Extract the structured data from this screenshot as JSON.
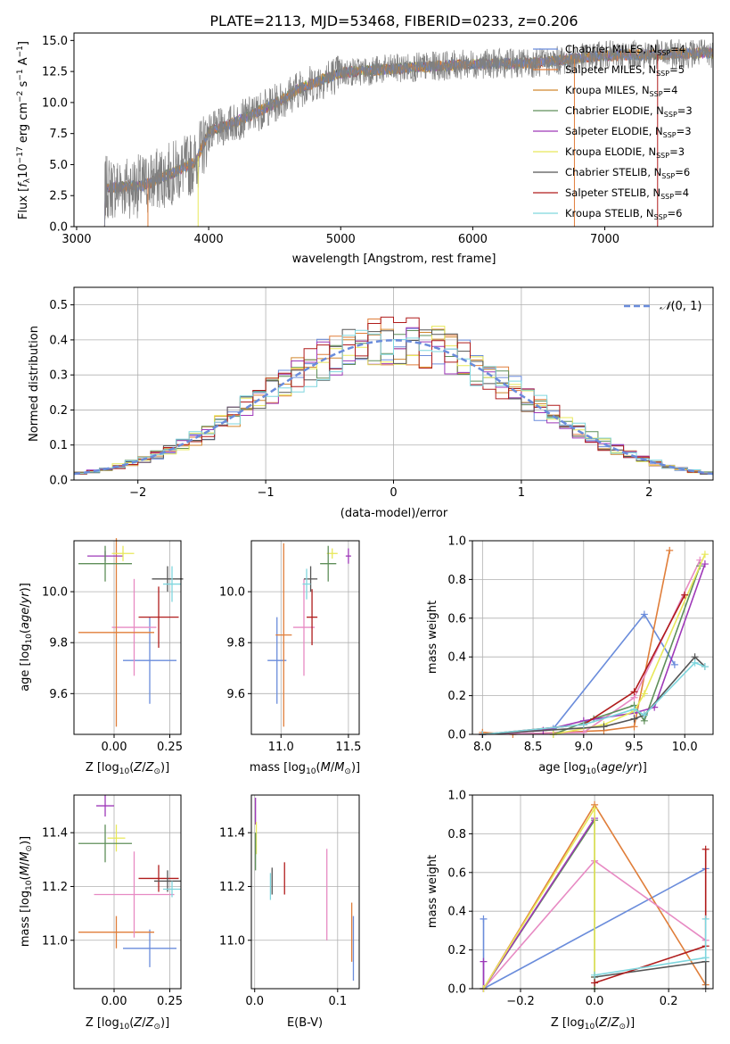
{
  "chart_data": [
    {
      "id": "spectrum",
      "type": "line",
      "title": "PLATE=2113, MJD=53468, FIBERID=0233, z=0.206",
      "xlabel": "wavelength [Angstrom, rest frame]",
      "ylabel": "Flux [f_λ 10^-17 erg cm^-2 s^-1 A^-1]",
      "xlim": [
        2980,
        7820
      ],
      "ylim": [
        0,
        15.6
      ],
      "xticks": [
        3000,
        4000,
        5000,
        6000,
        7000
      ],
      "yticks": [
        0.0,
        2.5,
        5.0,
        7.5,
        10.0,
        12.5,
        15.0
      ],
      "data_range": [
        3200,
        7820
      ],
      "continuum_anchors": [
        [
          3200,
          3.1
        ],
        [
          3500,
          3.3
        ],
        [
          3700,
          4.2
        ],
        [
          3900,
          5.2
        ],
        [
          4000,
          7.6
        ],
        [
          4200,
          8.4
        ],
        [
          4500,
          9.9
        ],
        [
          4700,
          11.2
        ],
        [
          5000,
          12.4
        ],
        [
          5500,
          12.8
        ],
        [
          6000,
          13.1
        ],
        [
          6500,
          13.2
        ],
        [
          7000,
          13.8
        ],
        [
          7500,
          13.9
        ],
        [
          7820,
          14.0
        ]
      ],
      "legend": [
        {
          "name": "Chabrier MILES, N_SSP=4",
          "color": "#6a8cdb"
        },
        {
          "name": "Salpeter MILES, N_SSP=5",
          "color": "#e07e3a"
        },
        {
          "name": "Kroupa MILES, N_SSP=4",
          "color": "#d1862e"
        },
        {
          "name": "Chabrier ELODIE, N_SSP=3",
          "color": "#5f8f5a"
        },
        {
          "name": "Salpeter ELODIE, N_SSP=3",
          "color": "#9e38b8"
        },
        {
          "name": "Kroupa ELODIE, N_SSP=3",
          "color": "#e8e85a"
        },
        {
          "name": "Chabrier STELIB, N_SSP=6",
          "color": "#555555"
        },
        {
          "name": "Salpeter STELIB, N_SSP=4",
          "color": "#b01c1c"
        },
        {
          "name": "Kroupa STELIB, N_SSP=6",
          "color": "#7fd6de"
        }
      ],
      "legend_labels": [
        {
          "name": "Chabrier MILES, N",
          "sub": "SSP",
          "tail": "=4"
        },
        {
          "name": "Salpeter MILES, N",
          "sub": "SSP",
          "tail": "=5"
        },
        {
          "name": "Kroupa MILES, N",
          "sub": "SSP",
          "tail": "=4"
        },
        {
          "name": "Chabrier ELODIE, N",
          "sub": "SSP",
          "tail": "=3"
        },
        {
          "name": "Salpeter ELODIE, N",
          "sub": "SSP",
          "tail": "=3"
        },
        {
          "name": "Kroupa ELODIE, N",
          "sub": "SSP",
          "tail": "=3"
        },
        {
          "name": "Chabrier STELIB, N",
          "sub": "SSP",
          "tail": "=6"
        },
        {
          "name": "Salpeter STELIB, N",
          "sub": "SSP",
          "tail": "=4"
        },
        {
          "name": "Kroupa STELIB, N",
          "sub": "SSP",
          "tail": "=6"
        }
      ],
      "legend_position": "right"
    },
    {
      "id": "residuals",
      "type": "line",
      "xlabel": "(data-model)/error",
      "ylabel": "Normed distribution",
      "xlim": [
        -2.5,
        2.5
      ],
      "ylim": [
        0,
        0.55
      ],
      "xticks": [
        -2,
        -1,
        0,
        1,
        2
      ],
      "xtick_labels": [
        "−2",
        "−1",
        "0",
        "1",
        "2"
      ],
      "yticks": [
        0.0,
        0.1,
        0.2,
        0.3,
        0.4,
        0.5
      ],
      "grid": true,
      "legend": [
        {
          "name": "N(0,1)",
          "color": "#6a8cdb",
          "style": "dashed"
        }
      ],
      "legend_position": "top-right"
    },
    {
      "id": "age_vs_Z",
      "type": "scatter",
      "xlabel": "Z [log10(Z/Z☉)]",
      "ylabel": "age [log10(age/yr)]",
      "xlim": [
        -0.18,
        0.3
      ],
      "ylim": [
        9.44,
        10.2
      ],
      "xticks": [
        0.0,
        0.25
      ],
      "yticks": [
        9.6,
        9.8,
        10.0
      ],
      "grid": true,
      "points": [
        {
          "x": 0.16,
          "y": 9.73,
          "xerr": 0.12,
          "yerr": 0.17,
          "color": "#6a8cdb"
        },
        {
          "x": 0.09,
          "y": 9.86,
          "xerr": 0.1,
          "yerr": 0.19,
          "color": "#e78ac3"
        },
        {
          "x": 0.01,
          "y": 9.84,
          "xerr": 0.17,
          "yerr": 0.37,
          "color": "#e07e3a"
        },
        {
          "x": 0.2,
          "y": 9.9,
          "xerr": 0.09,
          "yerr": 0.12,
          "color": "#b01c1c"
        },
        {
          "x": 0.24,
          "y": 10.05,
          "xerr": 0.07,
          "yerr": 0.05,
          "color": "#555555"
        },
        {
          "x": 0.26,
          "y": 10.03,
          "xerr": 0.04,
          "yerr": 0.07,
          "color": "#7fd6de"
        },
        {
          "x": -0.04,
          "y": 10.14,
          "xerr": 0.08,
          "yerr": 0.02,
          "color": "#9e38b8"
        },
        {
          "x": 0.04,
          "y": 10.15,
          "xerr": 0.05,
          "yerr": 0.03,
          "color": "#e8e85a"
        },
        {
          "x": -0.04,
          "y": 10.11,
          "xerr": 0.12,
          "yerr": 0.07,
          "color": "#5f8f5a"
        }
      ]
    },
    {
      "id": "age_vs_mass",
      "type": "scatter",
      "xlabel": "mass [log10(M/M☉)]",
      "xlim": [
        10.78,
        11.58
      ],
      "ylim": [
        9.44,
        10.2
      ],
      "xticks": [
        11.0,
        11.5
      ],
      "yticks": [
        9.6,
        9.8,
        10.0
      ],
      "grid": true,
      "points": [
        {
          "x": 10.97,
          "y": 9.73,
          "xerr": 0.07,
          "yerr": 0.17,
          "color": "#6a8cdb"
        },
        {
          "x": 11.02,
          "y": 9.83,
          "xerr": 0.06,
          "yerr": 0.36,
          "color": "#e07e3a"
        },
        {
          "x": 11.17,
          "y": 9.86,
          "xerr": 0.08,
          "yerr": 0.19,
          "color": "#e78ac3"
        },
        {
          "x": 11.23,
          "y": 9.9,
          "xerr": 0.04,
          "yerr": 0.11,
          "color": "#b01c1c"
        },
        {
          "x": 11.22,
          "y": 10.05,
          "xerr": 0.05,
          "yerr": 0.05,
          "color": "#555555"
        },
        {
          "x": 11.19,
          "y": 10.03,
          "xerr": 0.03,
          "yerr": 0.06,
          "color": "#7fd6de"
        },
        {
          "x": 11.5,
          "y": 10.14,
          "xerr": 0.02,
          "yerr": 0.03,
          "color": "#9e38b8"
        },
        {
          "x": 11.38,
          "y": 10.15,
          "xerr": 0.04,
          "yerr": 0.02,
          "color": "#e8e85a"
        },
        {
          "x": 11.35,
          "y": 10.11,
          "xerr": 0.06,
          "yerr": 0.07,
          "color": "#5f8f5a"
        }
      ]
    },
    {
      "id": "mass_weight_vs_age",
      "type": "line",
      "xlabel": "age [log10(age/yr)]",
      "ylabel": "mass weight",
      "xlim": [
        7.9,
        10.28
      ],
      "ylim": [
        0,
        1.0
      ],
      "xticks": [
        8.0,
        8.5,
        9.0,
        9.5,
        10.0
      ],
      "yticks": [
        0.0,
        0.2,
        0.4,
        0.6,
        0.8,
        1.0
      ],
      "grid": true,
      "series": [
        {
          "color": "#6a8cdb",
          "x": [
            8.0,
            8.7,
            9.6,
            9.9
          ],
          "y": [
            0.0,
            0.03,
            0.62,
            0.36
          ]
        },
        {
          "color": "#e07e3a",
          "x": [
            8.0,
            8.3,
            9.2,
            9.5,
            9.85
          ],
          "y": [
            0.01,
            0.0,
            0.02,
            0.04,
            0.95
          ]
        },
        {
          "color": "#e78ac3",
          "x": [
            8.0,
            9.0,
            9.5,
            10.15
          ],
          "y": [
            0.0,
            0.01,
            0.19,
            0.9
          ]
        },
        {
          "color": "#5f8f5a",
          "x": [
            8.7,
            9.1,
            9.5,
            9.6,
            10.15
          ],
          "y": [
            0.0,
            0.08,
            0.15,
            0.07,
            0.87
          ]
        },
        {
          "color": "#9e38b8",
          "x": [
            8.0,
            8.6,
            9.0,
            9.5,
            9.7,
            10.2
          ],
          "y": [
            0.0,
            0.02,
            0.07,
            0.11,
            0.14,
            0.88
          ]
        },
        {
          "color": "#e8e85a",
          "x": [
            8.7,
            9.2,
            9.5,
            9.6,
            10.2
          ],
          "y": [
            0.0,
            0.05,
            0.12,
            0.21,
            0.93
          ]
        },
        {
          "color": "#555555",
          "x": [
            8.0,
            9.2,
            9.5,
            9.6,
            10.1,
            10.2
          ],
          "y": [
            0.0,
            0.04,
            0.08,
            0.1,
            0.4,
            0.35
          ]
        },
        {
          "color": "#b01c1c",
          "x": [
            8.0,
            9.0,
            9.5,
            10.0
          ],
          "y": [
            0.0,
            0.05,
            0.22,
            0.72
          ]
        },
        {
          "color": "#7fd6de",
          "x": [
            8.0,
            9.0,
            9.5,
            9.6,
            10.1,
            10.2
          ],
          "y": [
            0.0,
            0.05,
            0.13,
            0.1,
            0.37,
            0.35
          ]
        }
      ]
    },
    {
      "id": "mass_vs_Z",
      "type": "scatter",
      "xlabel": "Z [log10(Z/Z☉)]",
      "ylabel": "mass [log10(M/M☉)]",
      "xlim": [
        -0.18,
        0.3
      ],
      "ylim": [
        10.82,
        11.54
      ],
      "xticks": [
        0.0,
        0.25
      ],
      "yticks": [
        11.0,
        11.2,
        11.4
      ],
      "grid": true,
      "points": [
        {
          "x": 0.16,
          "y": 10.97,
          "xerr": 0.12,
          "yerr": 0.07,
          "color": "#6a8cdb"
        },
        {
          "x": 0.01,
          "y": 11.03,
          "xerr": 0.17,
          "yerr": 0.06,
          "color": "#e07e3a"
        },
        {
          "x": 0.09,
          "y": 11.17,
          "xerr": 0.18,
          "yerr": 0.16,
          "color": "#e78ac3"
        },
        {
          "x": 0.2,
          "y": 11.23,
          "xerr": 0.09,
          "yerr": 0.05,
          "color": "#b01c1c"
        },
        {
          "x": 0.24,
          "y": 11.22,
          "xerr": 0.06,
          "yerr": 0.04,
          "color": "#555555"
        },
        {
          "x": 0.26,
          "y": 11.19,
          "xerr": 0.04,
          "yerr": 0.03,
          "color": "#7fd6de"
        },
        {
          "x": -0.04,
          "y": 11.5,
          "xerr": 0.04,
          "yerr": 0.04,
          "color": "#9e38b8"
        },
        {
          "x": 0.01,
          "y": 11.38,
          "xerr": 0.04,
          "yerr": 0.05,
          "color": "#e8e85a"
        },
        {
          "x": -0.04,
          "y": 11.36,
          "xerr": 0.12,
          "yerr": 0.07,
          "color": "#5f8f5a"
        }
      ]
    },
    {
      "id": "mass_vs_EBV",
      "type": "scatter",
      "xlabel": "E(B-V)",
      "xlim": [
        -0.004,
        0.126
      ],
      "ylim": [
        10.82,
        11.54
      ],
      "xticks": [
        0.0,
        0.1
      ],
      "yticks": [
        11.0,
        11.2,
        11.4
      ],
      "grid": true,
      "points": [
        {
          "x": 0.119,
          "y": 10.97,
          "xerr": 0,
          "yerr": 0.12,
          "color": "#6a8cdb"
        },
        {
          "x": 0.117,
          "y": 11.03,
          "xerr": 0,
          "yerr": 0.11,
          "color": "#e07e3a"
        },
        {
          "x": 0.087,
          "y": 11.17,
          "xerr": 0,
          "yerr": 0.17,
          "color": "#e78ac3"
        },
        {
          "x": 0.036,
          "y": 11.23,
          "xerr": 0,
          "yerr": 0.06,
          "color": "#b01c1c"
        },
        {
          "x": 0.021,
          "y": 11.22,
          "xerr": 0,
          "yerr": 0.05,
          "color": "#555555"
        },
        {
          "x": 0.019,
          "y": 11.2,
          "xerr": 0,
          "yerr": 0.05,
          "color": "#7fd6de"
        },
        {
          "x": 0.001,
          "y": 11.48,
          "xerr": 0,
          "yerr": 0.05,
          "color": "#9e38b8"
        },
        {
          "x": 0.002,
          "y": 11.38,
          "xerr": 0,
          "yerr": 0.06,
          "color": "#e8e85a"
        },
        {
          "x": 0.001,
          "y": 11.33,
          "xerr": 0,
          "yerr": 0.07,
          "color": "#5f8f5a"
        }
      ]
    },
    {
      "id": "mass_weight_vs_Z",
      "type": "line",
      "xlabel": "Z [log10(Z/Z☉)]",
      "ylabel": "mass weight",
      "xlim": [
        -0.33,
        0.32
      ],
      "ylim": [
        0,
        1.0
      ],
      "xticks": [
        -0.2,
        0.0,
        0.2
      ],
      "xtick_labels": [
        "−0.2",
        "0.0",
        "0.2"
      ],
      "yticks": [
        0.0,
        0.2,
        0.4,
        0.6,
        0.8,
        1.0
      ],
      "grid": true,
      "series": [
        {
          "color": "#6a8cdb",
          "x": [
            -0.3,
            -0.3,
            0.3
          ],
          "y": [
            0.36,
            0.0,
            0.62
          ]
        },
        {
          "color": "#e07e3a",
          "x": [
            -0.3,
            0.0,
            0.3
          ],
          "y": [
            0.0,
            0.95,
            0.02
          ]
        },
        {
          "color": "#e78ac3",
          "x": [
            -0.3,
            0.0,
            0.3
          ],
          "y": [
            0.0,
            0.66,
            0.25
          ]
        },
        {
          "color": "#5f8f5a",
          "x": [
            -0.3,
            0.0,
            0.0
          ],
          "y": [
            0.0,
            0.87,
            0.0
          ]
        },
        {
          "color": "#9e38b8",
          "x": [
            -0.3,
            -0.3,
            0.0
          ],
          "y": [
            0.14,
            0.0,
            0.88
          ]
        },
        {
          "color": "#e8e85a",
          "x": [
            -0.3,
            0.0,
            0.0
          ],
          "y": [
            0.0,
            0.93,
            0.06
          ]
        },
        {
          "color": "#555555",
          "x": [
            0.0,
            0.3,
            0.3
          ],
          "y": [
            0.06,
            0.14,
            0.0
          ]
        },
        {
          "color": "#b01c1c",
          "x": [
            0.0,
            0.3,
            0.3
          ],
          "y": [
            0.03,
            0.22,
            0.72
          ]
        },
        {
          "color": "#7fd6de",
          "x": [
            0.0,
            0.3,
            0.3
          ],
          "y": [
            0.07,
            0.16,
            0.36
          ]
        }
      ]
    }
  ]
}
